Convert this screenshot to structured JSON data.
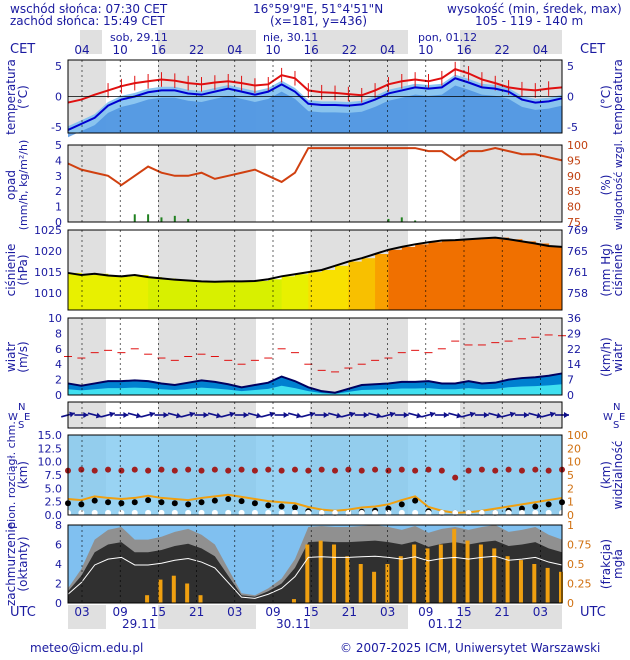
{
  "header": {
    "sunrise": "wschód słońca: 07:30 CET",
    "sunset": "zachód słońca: 15:49 CET",
    "coords": "16°59'9\"E, 51°4'51\"N",
    "grid": "(x=181, y=436)",
    "alt_label": "wysokość (min, średek, max)",
    "alt_values": "105 - 119 - 140 m"
  },
  "time_axis": {
    "cet_label": "CET",
    "utc_label": "UTC",
    "cet_ticks": [
      "04",
      "10",
      "16",
      "22",
      "04",
      "10",
      "16",
      "22",
      "04",
      "10",
      "16",
      "22",
      "04"
    ],
    "utc_ticks": [
      "03",
      "09",
      "15",
      "21",
      "03",
      "09",
      "15",
      "21",
      "03",
      "09",
      "15",
      "21",
      "03"
    ],
    "days": [
      "sob, 29.11",
      "nie, 30.11",
      "pon, 01.12"
    ],
    "days_bottom": [
      "29.11",
      "30.11",
      "01.12"
    ]
  },
  "footer": {
    "email": "meteo@icm.edu.pl",
    "copyright": "© 2007-2025 ICM, Uniwersytet Warszawski"
  },
  "colors": {
    "text": "#1a1aa0",
    "panel_bg": "#ffffff",
    "night_bg": "#e0e0e0",
    "temp_line": "#e01010",
    "temp_feel": "#0000d0",
    "temp_fill": "#80c0f0",
    "humidity": "#d04010",
    "pressure_line": "#000000",
    "wind_fill": "#0080d0",
    "wind_gust": "#e01010",
    "cloud_dark": "#303030",
    "fog_bar": "#f0a010"
  },
  "chart_data": [
    {
      "type": "line",
      "name": "temperature-panel",
      "ylabel": "temperatura (°C)",
      "ylim": [
        -6,
        6
      ],
      "yticks": [
        -5,
        0,
        5
      ],
      "series": [
        {
          "values": [
            -1.0,
            -0.5,
            0.3,
            1.0,
            1.7,
            2.2,
            2.5,
            2.8,
            2.6,
            2.2,
            2.0,
            2.3,
            2.5,
            2.2,
            1.8,
            2.0,
            3.5,
            3.0,
            1.0,
            0.7,
            0.6,
            0.4,
            0.2,
            1.0,
            2.0,
            2.5,
            2.8,
            2.5,
            3.0,
            4.5,
            3.8,
            2.8,
            2.2,
            1.5,
            1.2,
            1.0,
            1.3,
            1.5
          ]
        },
        {
          "values": [
            -5.5,
            -4.5,
            -3.5,
            -1.5,
            -0.5,
            0.0,
            0.7,
            1.0,
            1.0,
            0.5,
            0.3,
            0.8,
            1.3,
            0.8,
            0.3,
            0.8,
            2.0,
            0.8,
            -1.2,
            -1.4,
            -1.4,
            -1.5,
            -1.3,
            -0.5,
            0.5,
            1.0,
            1.5,
            1.3,
            1.5,
            3.0,
            2.3,
            1.5,
            1.3,
            0.8,
            -0.5,
            -1.0,
            -0.8,
            -0.3
          ]
        }
      ]
    },
    {
      "type": "line",
      "name": "precipitation-humidity-panel",
      "ylabel": "opad (mm/h, kg/m²/h)",
      "y2label": "wilgotność wzgl. (%)",
      "ylim": [
        0,
        5
      ],
      "yticks": [
        0,
        1,
        2,
        3,
        4,
        5
      ],
      "y2lim": [
        75,
        100
      ],
      "y2ticks": [
        75,
        80,
        85,
        90,
        95,
        100
      ],
      "series": [
        {
          "values": [
            94,
            92,
            91,
            90,
            87,
            90,
            93,
            91,
            90,
            90,
            91,
            89,
            90,
            91,
            92,
            90,
            88,
            91,
            99,
            99,
            99,
            99,
            99,
            99,
            99,
            99,
            99,
            98,
            98,
            95,
            98,
            98,
            99,
            98,
            97,
            97,
            96,
            95
          ]
        },
        {
          "values": [
            0,
            0,
            0,
            0,
            0,
            0.5,
            0.5,
            0.3,
            0.4,
            0.2,
            0,
            0,
            0,
            0,
            0,
            0,
            0,
            0,
            0,
            0,
            0,
            0,
            0,
            0,
            0.2,
            0.3,
            0.1,
            0,
            0,
            0,
            0,
            0,
            0,
            0,
            0,
            0,
            0,
            0
          ]
        }
      ]
    },
    {
      "type": "area",
      "name": "pressure-panel",
      "ylabel": "ciśnienie (hPa)",
      "y2label": "(mm Hg) ciśnienie",
      "ylim": [
        1006,
        1025
      ],
      "yticks": [
        1010,
        1015,
        1020,
        1025
      ],
      "y2ticks": [
        758,
        761,
        765,
        769
      ],
      "series": [
        {
          "values": [
            1014.8,
            1014.3,
            1014.6,
            1014.2,
            1014.0,
            1014.3,
            1013.8,
            1013.5,
            1013.2,
            1013.0,
            1012.8,
            1012.7,
            1012.8,
            1012.8,
            1012.9,
            1013.3,
            1014.0,
            1014.5,
            1015.0,
            1015.5,
            1016.5,
            1017.5,
            1018.3,
            1019.3,
            1020.3,
            1021.0,
            1021.6,
            1022.1,
            1022.5,
            1022.6,
            1022.8,
            1023.0,
            1023.2,
            1022.8,
            1022.3,
            1021.8,
            1021.2,
            1021.0
          ]
        }
      ]
    },
    {
      "type": "area",
      "name": "wind-panel",
      "ylabel": "wiatr (m/s)",
      "y2label": "(km/h) wiatr",
      "ylim": [
        0,
        10
      ],
      "yticks": [
        0,
        2,
        4,
        6,
        8,
        10
      ],
      "y2ticks": [
        0,
        7,
        14,
        22,
        29,
        36
      ],
      "series": [
        {
          "values": [
            1.5,
            1.2,
            1.5,
            1.8,
            1.8,
            1.9,
            1.8,
            1.5,
            1.3,
            1.6,
            1.9,
            1.7,
            1.4,
            1.0,
            1.3,
            1.6,
            2.4,
            1.8,
            1.0,
            0.5,
            0.3,
            0.8,
            1.3,
            1.4,
            1.5,
            1.7,
            1.7,
            1.8,
            1.5,
            1.5,
            1.8,
            1.5,
            1.6,
            2.0,
            2.2,
            2.3,
            2.5,
            2.8
          ]
        },
        {
          "values": [
            5.0,
            4.8,
            5.5,
            5.8,
            5.5,
            6.0,
            5.3,
            4.8,
            4.5,
            5.0,
            5.3,
            5.0,
            4.5,
            4.0,
            4.5,
            4.8,
            6.0,
            5.5,
            4.0,
            3.2,
            3.0,
            3.5,
            4.0,
            4.5,
            4.8,
            5.5,
            5.8,
            5.5,
            6.0,
            7.0,
            6.5,
            6.5,
            6.8,
            7.0,
            7.3,
            7.5,
            7.8,
            7.7
          ]
        }
      ]
    },
    {
      "type": "scatter",
      "name": "wind-direction-panel",
      "compass": [
        "N",
        "E",
        "W",
        "S"
      ]
    },
    {
      "type": "scatter",
      "name": "inversion-visibility-panel",
      "ylabel": "pion. rozciągł. chm. (km)",
      "y2label": "(km) widzialność",
      "ylim": [
        0,
        15
      ],
      "yticks": [
        0.0,
        2.5,
        5.0,
        7.5,
        10.0,
        12.5,
        15.0
      ],
      "y2ticks": [
        0,
        1,
        2,
        5,
        10,
        20,
        100
      ],
      "series": [
        {
          "values": [
            8.5,
            8.5,
            8.5,
            8.5,
            8.5,
            8.5,
            8.5,
            8.5,
            8.5,
            8.5,
            8.5,
            8.5,
            8.5,
            8.5,
            8.5,
            8.5,
            8.5,
            8.5,
            8.5,
            8.5,
            8.5,
            8.5,
            8.5,
            8.5,
            8.5,
            8.5,
            8.5,
            8.5,
            8.5,
            7.0,
            8.5,
            8.5,
            8.5,
            8.5,
            8.5,
            8.5,
            8.5,
            8.5
          ]
        },
        {
          "values": [
            3.0,
            2.8,
            3.5,
            3.2,
            3.0,
            3.2,
            3.6,
            3.2,
            3.0,
            2.8,
            3.2,
            3.5,
            3.8,
            3.4,
            3.0,
            2.6,
            2.4,
            2.2,
            1.5,
            1.0,
            0.8,
            1.0,
            1.4,
            1.6,
            2.0,
            2.8,
            3.5,
            1.5,
            0.8,
            0.4,
            0.5,
            0.8,
            1.2,
            1.6,
            2.0,
            2.4,
            2.8,
            3.2
          ]
        }
      ]
    },
    {
      "type": "area",
      "name": "cloud-fog-panel",
      "ylabel": "zachmurzenie (oktanty)",
      "y2label": "(frakcja) mgła",
      "ylim": [
        0,
        8
      ],
      "yticks": [
        0,
        2,
        4,
        6,
        8
      ],
      "y2ticks": [
        0,
        0.25,
        0.5,
        0.75,
        1
      ],
      "series": [
        {
          "values": [
            1.5,
            3.5,
            6.5,
            7.5,
            7.8,
            6.5,
            6.5,
            6.8,
            7.3,
            7.6,
            7.0,
            6.0,
            3.5,
            1.0,
            0.8,
            1.5,
            2.5,
            4.5,
            7.8,
            7.9,
            7.8,
            7.8,
            7.9,
            8.0,
            7.8,
            7.5,
            7.9,
            7.2,
            7.6,
            7.8,
            7.5,
            7.8,
            8.0,
            7.3,
            7.5,
            7.8,
            7.0,
            6.5
          ]
        },
        {
          "values": [
            0,
            0,
            0,
            0,
            0,
            0,
            0.1,
            0.3,
            0.35,
            0.25,
            0.1,
            0,
            0,
            0,
            0,
            0,
            0,
            0.05,
            0.75,
            0.8,
            0.75,
            0.6,
            0.5,
            0.4,
            0.5,
            0.6,
            0.75,
            0.7,
            0.75,
            0.95,
            0.8,
            0.75,
            0.7,
            0.6,
            0.55,
            0.5,
            0.45,
            0.4
          ]
        }
      ]
    }
  ]
}
